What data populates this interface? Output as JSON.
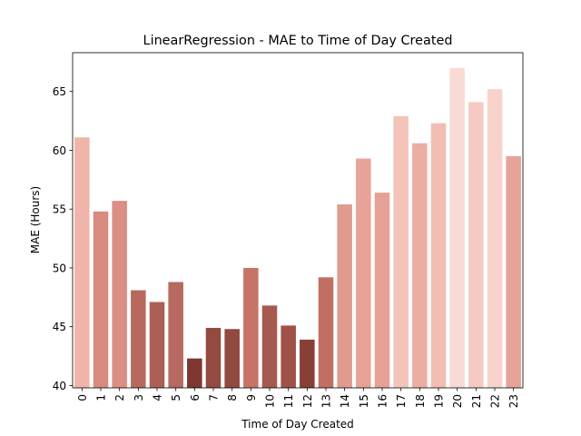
{
  "chart_data": {
    "type": "bar",
    "title": "LinearRegression - MAE to Time of Day Created",
    "xlabel": "Time of Day Created",
    "ylabel": "MAE (Hours)",
    "categories": [
      "0",
      "1",
      "2",
      "3",
      "4",
      "5",
      "6",
      "7",
      "8",
      "9",
      "10",
      "11",
      "12",
      "13",
      "14",
      "15",
      "16",
      "17",
      "18",
      "19",
      "20",
      "21",
      "22",
      "23"
    ],
    "values": [
      61.1,
      54.8,
      55.7,
      48.1,
      47.1,
      48.8,
      42.3,
      44.9,
      44.8,
      50.0,
      46.8,
      45.1,
      43.9,
      49.2,
      55.4,
      59.3,
      56.4,
      62.9,
      60.6,
      62.3,
      67.0,
      64.1,
      65.2,
      59.5
    ],
    "colors": [
      "#efb5aa",
      "#d98a7f",
      "#db8e83",
      "#b8695e",
      "#ac5f55",
      "#b76a5f",
      "#7d3630",
      "#934a40",
      "#914940",
      "#c87367",
      "#a6594f",
      "#a05248",
      "#883f36",
      "#c16f63",
      "#e09b8f",
      "#e8a398",
      "#e6a196",
      "#f4c4bb",
      "#ecaea3",
      "#f2bdb3",
      "#f9dad4",
      "#f5cac2",
      "#f7d2cb",
      "#e6a398"
    ],
    "yticks": [
      40,
      45,
      50,
      55,
      60,
      65
    ],
    "ylim": [
      39.8,
      68.3
    ],
    "grid": false
  }
}
